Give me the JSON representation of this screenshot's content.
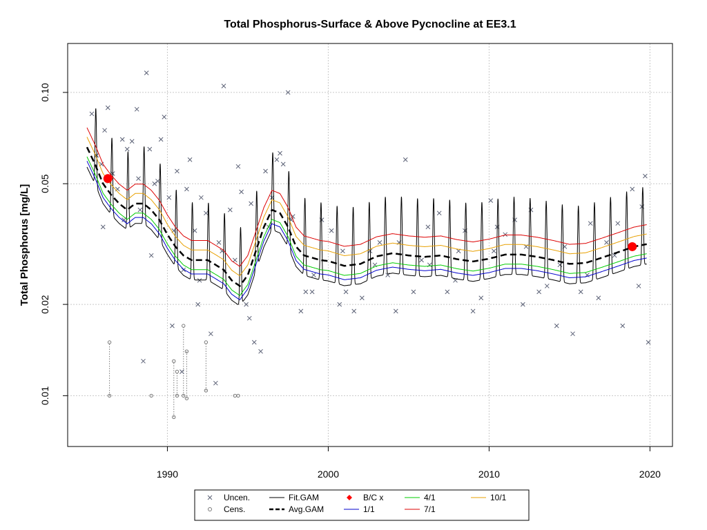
{
  "chart_data": {
    "type": "scatter",
    "title": "Total Phosphorus-Surface & Above Pycnocline at EE3.1",
    "xlabel": "",
    "ylabel": "Total Phosphorus [mg/L]",
    "xlim": [
      1983.8,
      2021.4
    ],
    "ylim": [
      0.0068,
      0.145
    ],
    "yscale": "log",
    "grid": true,
    "x_ticks": [
      1990,
      2000,
      2010,
      2020
    ],
    "x_tick_labels": [
      "1990",
      "2000",
      "2010",
      "2020"
    ],
    "y_ticks": [
      0.01,
      0.02,
      0.05,
      0.1
    ],
    "y_tick_labels": [
      "0.01",
      "0.02",
      "0.05",
      "0.10"
    ],
    "legend": {
      "position": "bottom",
      "entries": [
        "Uncen.",
        "Cens.",
        "Fit.GAM",
        "Avg.GAM",
        "B/C x",
        "1/1",
        "4/1",
        "7/1",
        "10/1"
      ]
    },
    "colors": {
      "uncensored": "#5a6075",
      "censored": "#777777",
      "fit_gam": "#000000",
      "avg_gam": "#000000",
      "bc_points": "#ff0000",
      "ratio_1_1": "#0000cc",
      "ratio_4_1": "#00cc00",
      "ratio_7_1": "#dd0000",
      "ratio_10_1": "#e8a000",
      "grid": "#c8c8c8"
    },
    "uncensored": {
      "x": [
        1985.3,
        1985.6,
        1985.9,
        1986.1,
        1986.3,
        1986.6,
        1986.9,
        1987.2,
        1987.5,
        1987.8,
        1988.1,
        1988.2,
        1988.5,
        1988.7,
        1988.9,
        1989.2,
        1989.4,
        1989.6,
        1989.8,
        1990.1,
        1990.3,
        1990.6,
        1990.9,
        1991.2,
        1991.4,
        1991.7,
        1991.9,
        1992.1,
        1992.4,
        1992.7,
        1993.0,
        1993.2,
        1993.5,
        1993.9,
        1994.2,
        1994.6,
        1994.9,
        1995.1,
        1995.4,
        1995.8,
        1996.1,
        1996.5,
        1996.8,
        1997.0,
        1997.2,
        1997.5,
        1997.8,
        1998.3,
        1998.6,
        1999.1,
        1999.6,
        2000.2,
        2000.7,
        2001.1,
        2001.6,
        2002.1,
        2002.6,
        2003.2,
        2003.7,
        2004.2,
        2004.8,
        2005.3,
        2005.8,
        2006.3,
        2006.9,
        2007.4,
        2007.9,
        2008.5,
        2009.0,
        2009.5,
        2010.1,
        2010.5,
        2011.0,
        2011.6,
        2012.1,
        2012.6,
        2013.1,
        2013.6,
        2014.2,
        2014.7,
        2015.2,
        2015.7,
        2016.3,
        2016.8,
        2017.3,
        2017.8,
        2018.3,
        2018.9,
        2019.3,
        2019.7,
        2019.9,
        1986.0,
        1987.3,
        1988.3,
        1989.0,
        1990.4,
        1991.0,
        1992.0,
        1993.4,
        1994.4,
        1995.2,
        1996.3,
        1997.7,
        1999.0,
        2000.9,
        2002.9,
        2004.4,
        2006.2,
        2008.1,
        2010.3,
        2012.3,
        2014.4,
        2016.1,
        2018.0,
        2019.5
      ],
      "y": [
        0.085,
        0.062,
        0.058,
        0.075,
        0.089,
        0.054,
        0.048,
        0.07,
        0.065,
        0.069,
        0.088,
        0.052,
        0.013,
        0.116,
        0.065,
        0.05,
        0.051,
        0.07,
        0.083,
        0.045,
        0.017,
        0.055,
        0.012,
        0.048,
        0.06,
        0.035,
        0.02,
        0.045,
        0.04,
        0.016,
        0.011,
        0.032,
        0.105,
        0.041,
        0.028,
        0.047,
        0.02,
        0.018,
        0.015,
        0.014,
        0.055,
        0.045,
        0.06,
        0.063,
        0.058,
        0.1,
        0.039,
        0.019,
        0.022,
        0.025,
        0.038,
        0.035,
        0.02,
        0.022,
        0.019,
        0.021,
        0.03,
        0.032,
        0.025,
        0.019,
        0.06,
        0.022,
        0.028,
        0.027,
        0.04,
        0.022,
        0.024,
        0.035,
        0.019,
        0.021,
        0.044,
        0.036,
        0.034,
        0.038,
        0.02,
        0.041,
        0.022,
        0.023,
        0.017,
        0.031,
        0.016,
        0.022,
        0.037,
        0.021,
        0.032,
        0.029,
        0.017,
        0.048,
        0.023,
        0.053,
        0.015,
        0.036,
        0.038,
        0.041,
        0.029,
        0.035,
        0.026,
        0.024,
        0.03,
        0.057,
        0.043,
        0.036,
        0.038,
        0.022,
        0.03,
        0.027,
        0.032,
        0.036,
        0.03,
        0.03,
        0.031,
        0.027,
        0.025,
        0.037,
        0.042
      ]
    },
    "censored": {
      "x": [
        1986.4,
        1990.4,
        1990.6,
        1991.0,
        1991.2,
        1992.4,
        1994.2,
        1994.4,
        1989.0
      ],
      "y": [
        0.01,
        0.0085,
        0.01,
        0.01,
        0.0098,
        0.0104,
        0.01,
        0.01,
        0.01
      ],
      "upper": [
        0.015,
        0.013,
        0.012,
        0.017,
        0.014,
        0.015,
        0.01,
        0.01,
        0.01
      ]
    },
    "avg_gam": {
      "x": [
        1985.0,
        1985.5,
        1986.0,
        1986.5,
        1987.0,
        1987.5,
        1988.0,
        1988.5,
        1989.0,
        1989.5,
        1990.0,
        1990.5,
        1991.0,
        1991.5,
        1992.0,
        1992.5,
        1993.0,
        1993.5,
        1994.0,
        1994.5,
        1995.0,
        1995.5,
        1996.0,
        1996.5,
        1997.0,
        1997.5,
        1998.0,
        1998.5,
        1999.0,
        1999.5,
        2000.0,
        2001.0,
        2002.0,
        2003.0,
        2004.0,
        2005.0,
        2006.0,
        2007.0,
        2008.0,
        2009.0,
        2010.0,
        2011.0,
        2012.0,
        2013.0,
        2014.0,
        2015.0,
        2016.0,
        2017.0,
        2018.0,
        2019.0,
        2019.8
      ],
      "y": [
        0.066,
        0.058,
        0.05,
        0.046,
        0.043,
        0.041,
        0.043,
        0.043,
        0.041,
        0.038,
        0.034,
        0.031,
        0.029,
        0.028,
        0.028,
        0.028,
        0.027,
        0.026,
        0.024,
        0.023,
        0.025,
        0.03,
        0.036,
        0.041,
        0.04,
        0.036,
        0.031,
        0.029,
        0.0285,
        0.028,
        0.0278,
        0.0268,
        0.0272,
        0.0288,
        0.0295,
        0.029,
        0.0287,
        0.029,
        0.0282,
        0.0277,
        0.0283,
        0.0292,
        0.0292,
        0.0287,
        0.028,
        0.0272,
        0.0274,
        0.0285,
        0.0297,
        0.031,
        0.0316
      ]
    },
    "fit_gam": {
      "seasonal_peak_ratio": 1.55,
      "seasonal_trough_ratio": 0.86,
      "follows": "avg_gam"
    },
    "ratio_lines": [
      {
        "name": "1/1",
        "color": "#0000cc",
        "factor": 0.9
      },
      {
        "name": "4/1",
        "color": "#00cc00",
        "factor": 0.93
      },
      {
        "name": "7/1",
        "color": "#dd0000",
        "factor": 1.16
      },
      {
        "name": "10/1",
        "color": "#e8a000",
        "factor": 1.08
      }
    ],
    "bc_points": {
      "x": [
        1986.3,
        2018.9
      ],
      "y": [
        0.052,
        0.031
      ]
    }
  }
}
